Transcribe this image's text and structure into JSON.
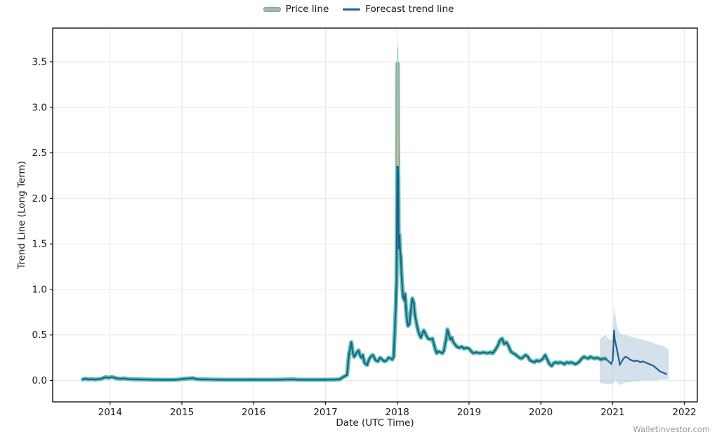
{
  "watermark": "Walletinvestor.com",
  "legend": {
    "price_label": "Price line",
    "forecast_label": "Forecast trend line"
  },
  "chart_data": {
    "type": "line",
    "title": "",
    "xlabel": "Date (UTC Time)",
    "ylabel": "Trend Line (Long Term)",
    "xlim": [
      2013.2,
      2022.18
    ],
    "ylim": [
      -0.235,
      3.87
    ],
    "x_ticks": [
      2014,
      2015,
      2016,
      2017,
      2018,
      2019,
      2020,
      2021,
      2022
    ],
    "y_ticks": [
      0.0,
      0.5,
      1.0,
      1.5,
      2.0,
      2.5,
      3.0,
      3.5
    ],
    "grid": true,
    "legend_position": "top-center",
    "colors": {
      "price_outline": "#5bc4ae",
      "price_core": "#f0a28e",
      "forecast": "#1f5f8f",
      "band_fill": "#a9c2d6",
      "grid": "#e7e7e7",
      "frame": "#000000",
      "tick_text": "#1a1a1a"
    },
    "series": [
      {
        "name": "Price line",
        "points": [
          [
            2013.62,
            0.012
          ],
          [
            2013.66,
            0.02
          ],
          [
            2013.7,
            0.012
          ],
          [
            2013.74,
            0.016
          ],
          [
            2013.78,
            0.01
          ],
          [
            2013.82,
            0.013
          ],
          [
            2013.86,
            0.016
          ],
          [
            2013.9,
            0.026
          ],
          [
            2013.94,
            0.036
          ],
          [
            2013.97,
            0.03
          ],
          [
            2014.0,
            0.033
          ],
          [
            2014.03,
            0.038
          ],
          [
            2014.06,
            0.03
          ],
          [
            2014.1,
            0.022
          ],
          [
            2014.15,
            0.02
          ],
          [
            2014.2,
            0.022
          ],
          [
            2014.25,
            0.016
          ],
          [
            2014.3,
            0.015
          ],
          [
            2014.35,
            0.012
          ],
          [
            2014.4,
            0.012
          ],
          [
            2014.45,
            0.01
          ],
          [
            2014.5,
            0.01
          ],
          [
            2014.55,
            0.009
          ],
          [
            2014.6,
            0.008
          ],
          [
            2014.7,
            0.007
          ],
          [
            2014.8,
            0.007
          ],
          [
            2014.9,
            0.008
          ],
          [
            2014.95,
            0.01
          ],
          [
            2015.0,
            0.016
          ],
          [
            2015.05,
            0.02
          ],
          [
            2015.1,
            0.022
          ],
          [
            2015.15,
            0.026
          ],
          [
            2015.2,
            0.016
          ],
          [
            2015.25,
            0.012
          ],
          [
            2015.3,
            0.012
          ],
          [
            2015.4,
            0.01
          ],
          [
            2015.5,
            0.009
          ],
          [
            2015.6,
            0.008
          ],
          [
            2015.7,
            0.008
          ],
          [
            2015.8,
            0.008
          ],
          [
            2015.9,
            0.008
          ],
          [
            2016.0,
            0.008
          ],
          [
            2016.1,
            0.008
          ],
          [
            2016.2,
            0.008
          ],
          [
            2016.3,
            0.008
          ],
          [
            2016.4,
            0.009
          ],
          [
            2016.5,
            0.011
          ],
          [
            2016.55,
            0.012
          ],
          [
            2016.6,
            0.009
          ],
          [
            2016.7,
            0.008
          ],
          [
            2016.8,
            0.008
          ],
          [
            2016.9,
            0.008
          ],
          [
            2017.0,
            0.008
          ],
          [
            2017.05,
            0.009
          ],
          [
            2017.1,
            0.009
          ],
          [
            2017.15,
            0.01
          ],
          [
            2017.2,
            0.013
          ],
          [
            2017.25,
            0.04
          ],
          [
            2017.3,
            0.06
          ],
          [
            2017.33,
            0.3
          ],
          [
            2017.36,
            0.42
          ],
          [
            2017.38,
            0.3
          ],
          [
            2017.4,
            0.26
          ],
          [
            2017.43,
            0.3
          ],
          [
            2017.46,
            0.33
          ],
          [
            2017.48,
            0.28
          ],
          [
            2017.5,
            0.25
          ],
          [
            2017.52,
            0.28
          ],
          [
            2017.54,
            0.2
          ],
          [
            2017.56,
            0.18
          ],
          [
            2017.58,
            0.17
          ],
          [
            2017.6,
            0.22
          ],
          [
            2017.63,
            0.26
          ],
          [
            2017.66,
            0.28
          ],
          [
            2017.68,
            0.25
          ],
          [
            2017.7,
            0.22
          ],
          [
            2017.73,
            0.21
          ],
          [
            2017.76,
            0.25
          ],
          [
            2017.79,
            0.23
          ],
          [
            2017.82,
            0.21
          ],
          [
            2017.85,
            0.22
          ],
          [
            2017.88,
            0.25
          ],
          [
            2017.91,
            0.24
          ],
          [
            2017.93,
            0.23
          ],
          [
            2017.95,
            0.26
          ],
          [
            2017.96,
            0.45
          ],
          [
            2017.98,
            0.8
          ],
          [
            2017.99,
            1.1
          ],
          [
            2018.0,
            2.4
          ],
          [
            2018.005,
            3.48
          ],
          [
            2018.01,
            2.6
          ],
          [
            2018.015,
            2.2
          ],
          [
            2018.02,
            1.45
          ],
          [
            2018.03,
            1.6
          ],
          [
            2018.04,
            1.42
          ],
          [
            2018.05,
            1.35
          ],
          [
            2018.06,
            1.15
          ],
          [
            2018.07,
            1.05
          ],
          [
            2018.08,
            0.92
          ],
          [
            2018.1,
            0.88
          ],
          [
            2018.11,
            0.95
          ],
          [
            2018.12,
            0.8
          ],
          [
            2018.13,
            0.7
          ],
          [
            2018.15,
            0.6
          ],
          [
            2018.17,
            0.62
          ],
          [
            2018.19,
            0.78
          ],
          [
            2018.21,
            0.9
          ],
          [
            2018.23,
            0.85
          ],
          [
            2018.25,
            0.7
          ],
          [
            2018.27,
            0.62
          ],
          [
            2018.29,
            0.55
          ],
          [
            2018.31,
            0.5
          ],
          [
            2018.33,
            0.47
          ],
          [
            2018.35,
            0.52
          ],
          [
            2018.37,
            0.55
          ],
          [
            2018.4,
            0.5
          ],
          [
            2018.43,
            0.46
          ],
          [
            2018.46,
            0.45
          ],
          [
            2018.49,
            0.46
          ],
          [
            2018.51,
            0.4
          ],
          [
            2018.53,
            0.34
          ],
          [
            2018.55,
            0.3
          ],
          [
            2018.57,
            0.32
          ],
          [
            2018.6,
            0.31
          ],
          [
            2018.63,
            0.3
          ],
          [
            2018.65,
            0.33
          ],
          [
            2018.68,
            0.45
          ],
          [
            2018.7,
            0.56
          ],
          [
            2018.72,
            0.5
          ],
          [
            2018.74,
            0.45
          ],
          [
            2018.76,
            0.47
          ],
          [
            2018.78,
            0.42
          ],
          [
            2018.8,
            0.4
          ],
          [
            2018.83,
            0.37
          ],
          [
            2018.86,
            0.36
          ],
          [
            2018.9,
            0.37
          ],
          [
            2018.93,
            0.35
          ],
          [
            2018.96,
            0.36
          ],
          [
            2019.0,
            0.35
          ],
          [
            2019.03,
            0.32
          ],
          [
            2019.06,
            0.3
          ],
          [
            2019.1,
            0.31
          ],
          [
            2019.15,
            0.3
          ],
          [
            2019.2,
            0.31
          ],
          [
            2019.25,
            0.3
          ],
          [
            2019.3,
            0.31
          ],
          [
            2019.33,
            0.3
          ],
          [
            2019.36,
            0.33
          ],
          [
            2019.4,
            0.38
          ],
          [
            2019.43,
            0.44
          ],
          [
            2019.46,
            0.46
          ],
          [
            2019.49,
            0.4
          ],
          [
            2019.52,
            0.42
          ],
          [
            2019.55,
            0.38
          ],
          [
            2019.58,
            0.32
          ],
          [
            2019.61,
            0.3
          ],
          [
            2019.64,
            0.29
          ],
          [
            2019.67,
            0.27
          ],
          [
            2019.7,
            0.25
          ],
          [
            2019.73,
            0.24
          ],
          [
            2019.76,
            0.26
          ],
          [
            2019.79,
            0.28
          ],
          [
            2019.82,
            0.26
          ],
          [
            2019.85,
            0.22
          ],
          [
            2019.88,
            0.21
          ],
          [
            2019.91,
            0.2
          ],
          [
            2019.94,
            0.22
          ],
          [
            2019.97,
            0.21
          ],
          [
            2020.0,
            0.22
          ],
          [
            2020.03,
            0.24
          ],
          [
            2020.06,
            0.28
          ],
          [
            2020.09,
            0.23
          ],
          [
            2020.12,
            0.18
          ],
          [
            2020.15,
            0.16
          ],
          [
            2020.18,
            0.19
          ],
          [
            2020.21,
            0.2
          ],
          [
            2020.24,
            0.19
          ],
          [
            2020.27,
            0.2
          ],
          [
            2020.3,
            0.19
          ],
          [
            2020.33,
            0.18
          ],
          [
            2020.36,
            0.2
          ],
          [
            2020.39,
            0.19
          ],
          [
            2020.42,
            0.2
          ],
          [
            2020.45,
            0.19
          ],
          [
            2020.48,
            0.18
          ],
          [
            2020.51,
            0.19
          ],
          [
            2020.54,
            0.21
          ],
          [
            2020.57,
            0.24
          ],
          [
            2020.6,
            0.26
          ],
          [
            2020.63,
            0.25
          ],
          [
            2020.66,
            0.24
          ],
          [
            2020.69,
            0.26
          ],
          [
            2020.72,
            0.25
          ],
          [
            2020.75,
            0.24
          ],
          [
            2020.78,
            0.25
          ],
          [
            2020.81,
            0.24
          ],
          [
            2020.84,
            0.23
          ],
          [
            2020.87,
            0.24
          ],
          [
            2020.9,
            0.24
          ]
        ]
      },
      {
        "name": "Forecast trend line",
        "historical_clamp": 2.35,
        "future_points": [
          [
            2020.9,
            0.24
          ],
          [
            2020.93,
            0.22
          ],
          [
            2020.96,
            0.2
          ],
          [
            2020.98,
            0.18
          ],
          [
            2021.0,
            0.22
          ],
          [
            2021.01,
            0.35
          ],
          [
            2021.02,
            0.55
          ],
          [
            2021.03,
            0.45
          ],
          [
            2021.05,
            0.38
          ],
          [
            2021.07,
            0.3
          ],
          [
            2021.09,
            0.22
          ],
          [
            2021.1,
            0.17
          ],
          [
            2021.12,
            0.2
          ],
          [
            2021.15,
            0.24
          ],
          [
            2021.18,
            0.26
          ],
          [
            2021.21,
            0.25
          ],
          [
            2021.24,
            0.23
          ],
          [
            2021.27,
            0.22
          ],
          [
            2021.3,
            0.21
          ],
          [
            2021.33,
            0.22
          ],
          [
            2021.36,
            0.21
          ],
          [
            2021.39,
            0.2
          ],
          [
            2021.42,
            0.21
          ],
          [
            2021.45,
            0.2
          ],
          [
            2021.48,
            0.19
          ],
          [
            2021.51,
            0.18
          ],
          [
            2021.54,
            0.17
          ],
          [
            2021.57,
            0.16
          ],
          [
            2021.6,
            0.14
          ],
          [
            2021.63,
            0.12
          ],
          [
            2021.66,
            0.1
          ],
          [
            2021.69,
            0.09
          ],
          [
            2021.72,
            0.08
          ],
          [
            2021.75,
            0.07
          ]
        ]
      }
    ],
    "forecast_band": {
      "opacity": 0.5,
      "points_x_lower_upper": [
        [
          2020.82,
          -0.03,
          0.45
        ],
        [
          2020.86,
          -0.03,
          0.48
        ],
        [
          2020.9,
          -0.04,
          0.5
        ],
        [
          2020.94,
          -0.04,
          0.46
        ],
        [
          2020.98,
          -0.04,
          0.44
        ],
        [
          2021.0,
          -0.04,
          0.5
        ],
        [
          2021.02,
          -0.02,
          0.82
        ],
        [
          2021.04,
          0.0,
          0.7
        ],
        [
          2021.06,
          -0.02,
          0.6
        ],
        [
          2021.1,
          -0.05,
          0.52
        ],
        [
          2021.15,
          -0.03,
          0.5
        ],
        [
          2021.2,
          -0.02,
          0.5
        ],
        [
          2021.25,
          -0.02,
          0.48
        ],
        [
          2021.3,
          -0.01,
          0.47
        ],
        [
          2021.35,
          -0.01,
          0.46
        ],
        [
          2021.4,
          0.0,
          0.45
        ],
        [
          2021.45,
          0.0,
          0.44
        ],
        [
          2021.5,
          0.0,
          0.43
        ],
        [
          2021.55,
          0.0,
          0.42
        ],
        [
          2021.6,
          0.0,
          0.4
        ],
        [
          2021.65,
          0.01,
          0.39
        ],
        [
          2021.7,
          0.01,
          0.38
        ],
        [
          2021.74,
          0.01,
          0.36
        ],
        [
          2021.78,
          0.02,
          0.35
        ]
      ]
    },
    "peak_wick": {
      "x": 2018.005,
      "y_from": 3.48,
      "y_to": 3.66,
      "color": "#9edccd"
    }
  }
}
